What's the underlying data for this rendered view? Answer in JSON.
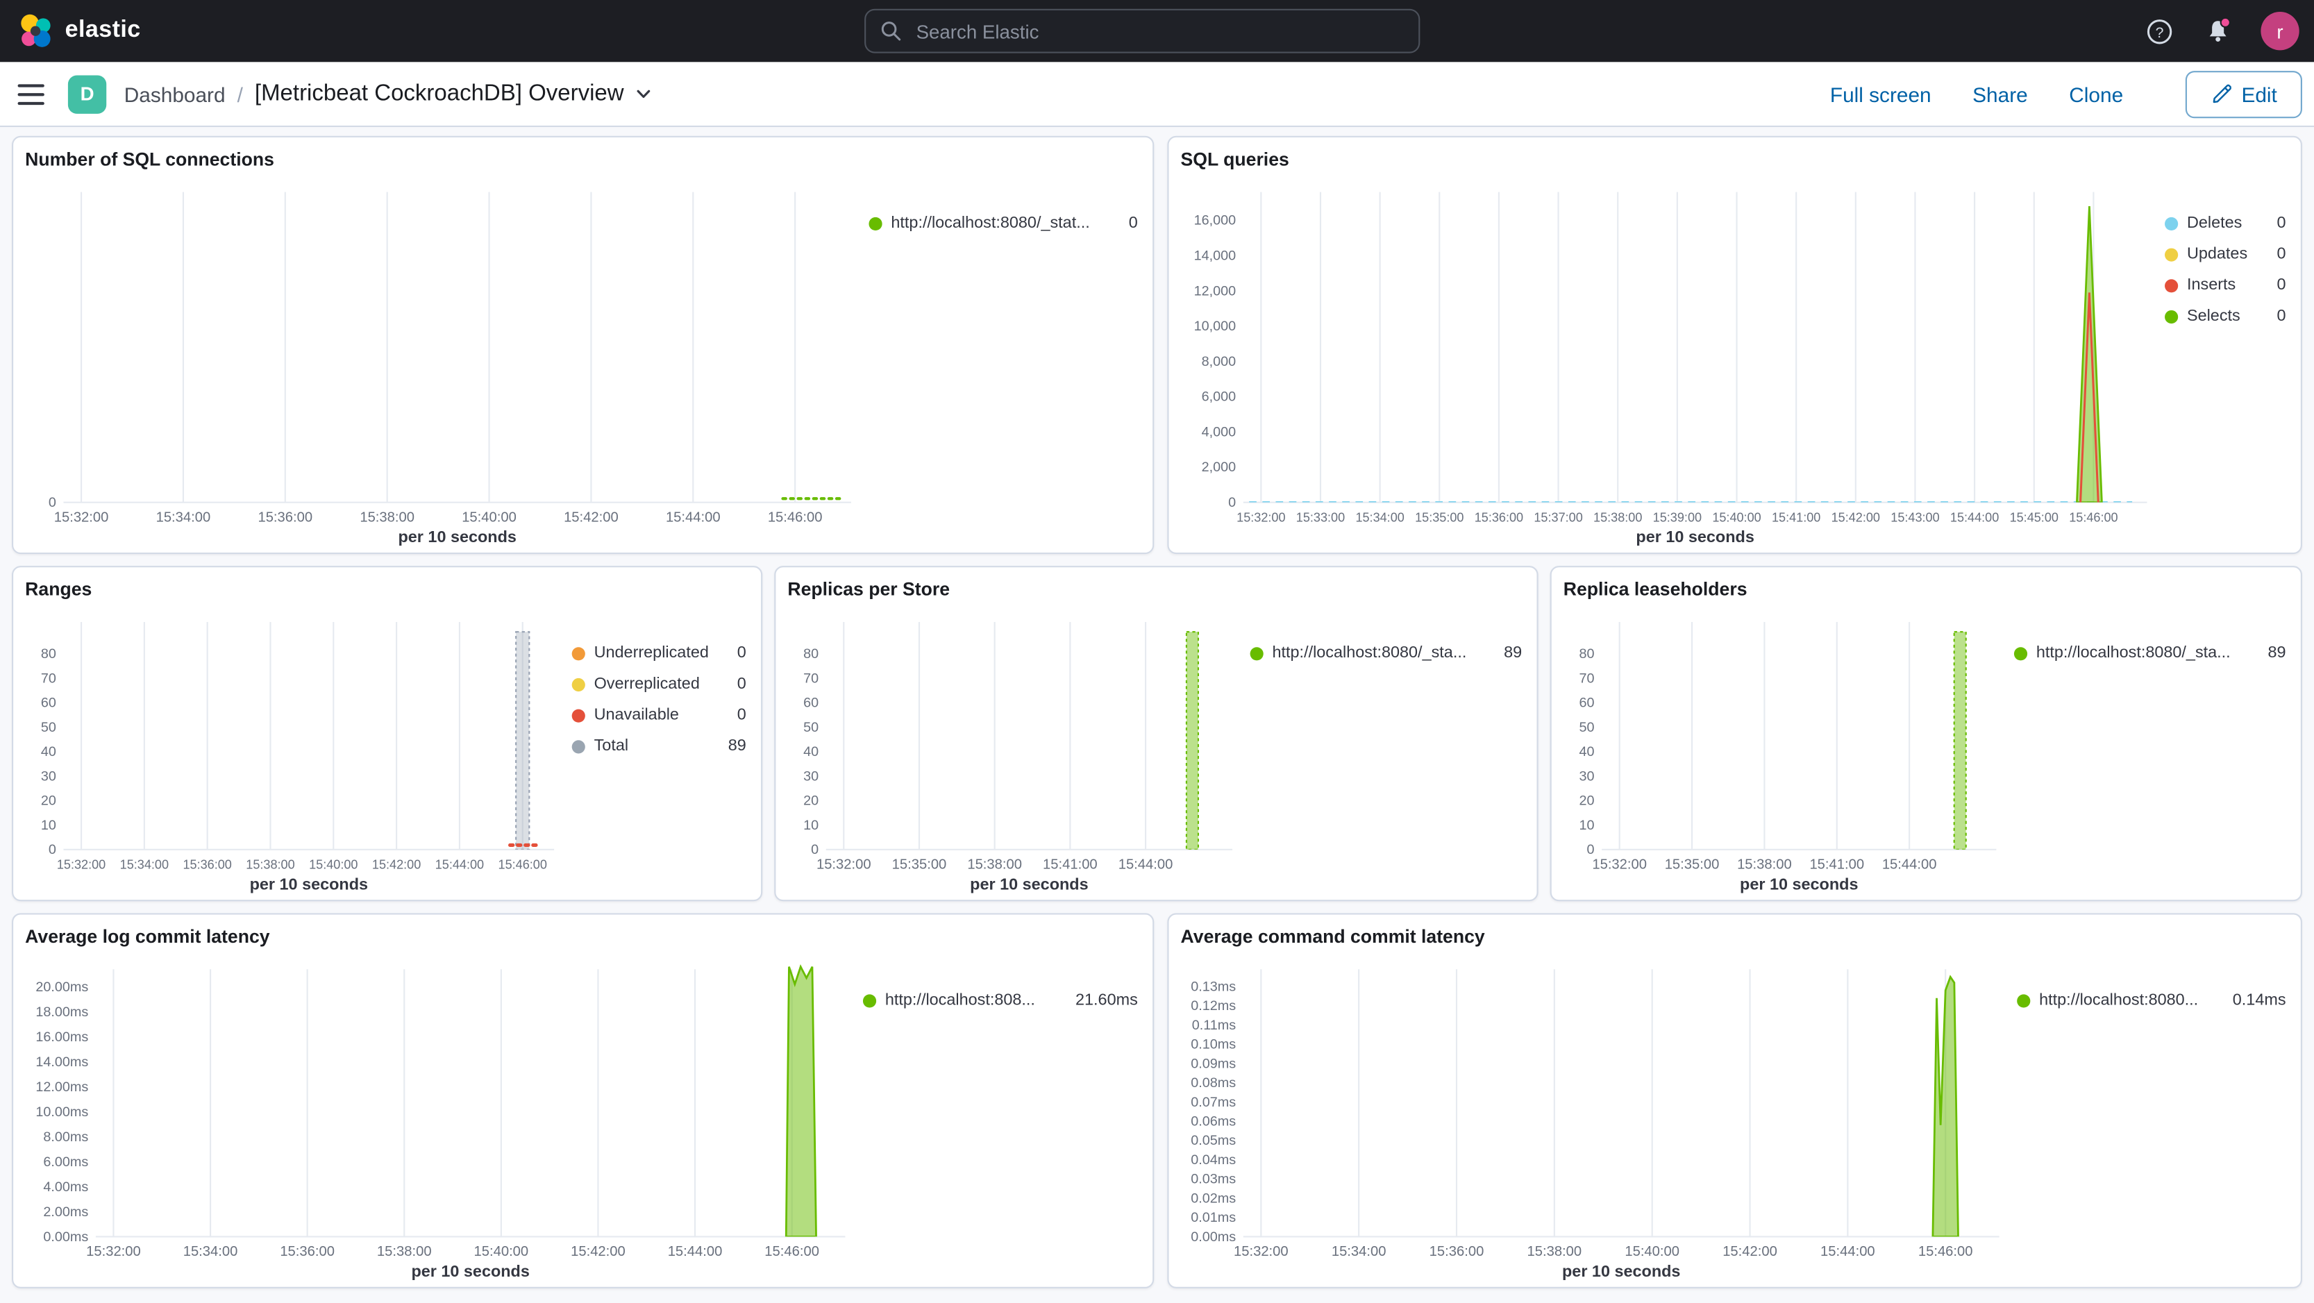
{
  "header": {
    "logo_text": "elastic",
    "search_placeholder": "Search Elastic",
    "avatar_initial": "r",
    "accent_pink": "#f04e98"
  },
  "navbar": {
    "badge": "D",
    "breadcrumb": "Dashboard",
    "separator": "/",
    "title": "[Metricbeat CockroachDB] Overview",
    "full_screen": "Full screen",
    "share": "Share",
    "clone": "Clone",
    "edit": "Edit"
  },
  "panels": [
    {
      "title": "Number of SQL connections",
      "legend": [
        {
          "color": "#68BC00",
          "label": "http://localhost:8080/_stat...",
          "value": "0"
        }
      ],
      "chart": {
        "type": "line",
        "ymax": 1,
        "yticks": [
          {
            "label": "0",
            "v": 0
          }
        ],
        "xticks": [
          "15:32:00",
          "15:34:00",
          "15:36:00",
          "15:38:00",
          "15:40:00",
          "15:42:00",
          "15:44:00",
          "15:46:00"
        ],
        "x_extra": 0.55,
        "xlabel": "per 10 seconds",
        "series": [
          {
            "name": "http://localhost:8080/_stat...",
            "type": "dotted",
            "color": "#68BC00",
            "width": 2,
            "points": [
              [
                6.88,
                0.012
              ],
              [
                7.48,
                0.012
              ]
            ]
          }
        ]
      }
    },
    {
      "title": "SQL queries",
      "legend": [
        {
          "color": "#7DD2EE",
          "label": "Deletes",
          "value": "0"
        },
        {
          "color": "#EFCF43",
          "label": "Updates",
          "value": "0"
        },
        {
          "color": "#E4503A",
          "label": "Inserts",
          "value": "0"
        },
        {
          "color": "#68BC00",
          "label": "Selects",
          "value": "0"
        }
      ],
      "chart": {
        "type": "line",
        "ymax": 17600,
        "yticks": [
          {
            "label": "0",
            "v": 0
          },
          {
            "label": "2,000",
            "v": 2000
          },
          {
            "label": "4,000",
            "v": 4000
          },
          {
            "label": "6,000",
            "v": 6000
          },
          {
            "label": "8,000",
            "v": 8000
          },
          {
            "label": "10,000",
            "v": 10000
          },
          {
            "label": "12,000",
            "v": 12000
          },
          {
            "label": "14,000",
            "v": 14000
          },
          {
            "label": "16,000",
            "v": 16000
          }
        ],
        "xticks": [
          "15:32:00",
          "15:33:00",
          "15:34:00",
          "15:35:00",
          "15:36:00",
          "15:37:00",
          "15:38:00",
          "15:39:00",
          "15:40:00",
          "15:41:00",
          "15:42:00",
          "15:43:00",
          "15:44:00",
          "15:45:00",
          "15:46:00"
        ],
        "x_extra": 0.9,
        "xlabel": "per 10 seconds",
        "series": [
          {
            "name": "Deletes",
            "type": "dashed",
            "color": "#7DD2EE",
            "width": 1.5,
            "points": [
              [
                -0.2,
                0
              ],
              [
                14.65,
                0
              ]
            ]
          },
          {
            "name": "Selects",
            "type": "area",
            "color": "#68BC00",
            "fill_opacity": 0.5,
            "points": [
              [
                13.72,
                0
              ],
              [
                13.93,
                16800
              ],
              [
                14.14,
                0
              ]
            ]
          },
          {
            "name": "Inserts",
            "type": "line",
            "color": "#E4503A",
            "width": 1.4,
            "points": [
              [
                13.78,
                0
              ],
              [
                13.93,
                11900
              ],
              [
                14.08,
                0
              ]
            ]
          }
        ]
      }
    },
    {
      "title": "Ranges",
      "legend": [
        {
          "color": "#F29A38",
          "label": "Underreplicated",
          "value": "0"
        },
        {
          "color": "#EFCF43",
          "label": "Overreplicated",
          "value": "0"
        },
        {
          "color": "#E4503A",
          "label": "Unavailable",
          "value": "0"
        },
        {
          "color": "#9AA5B1",
          "label": "Total",
          "value": "89"
        }
      ],
      "chart": {
        "type": "bar",
        "ymax": 93,
        "yticks": [
          {
            "label": "0",
            "v": 0
          },
          {
            "label": "10",
            "v": 10
          },
          {
            "label": "20",
            "v": 20
          },
          {
            "label": "30",
            "v": 30
          },
          {
            "label": "40",
            "v": 40
          },
          {
            "label": "50",
            "v": 50
          },
          {
            "label": "60",
            "v": 60
          },
          {
            "label": "70",
            "v": 70
          },
          {
            "label": "80",
            "v": 80
          }
        ],
        "xticks": [
          "15:32:00",
          "15:34:00",
          "15:36:00",
          "15:38:00",
          "15:40:00",
          "15:42:00",
          "15:44:00",
          "15:46:00"
        ],
        "x_extra": 0.5,
        "xlabel": "per 10 seconds",
        "series": [
          {
            "name": "Total",
            "type": "bar",
            "color": "#98A2B3",
            "fill_opacity": 0.35,
            "barw": 9,
            "points": [
              [
                7,
                89
              ]
            ]
          },
          {
            "name": "Unavailable",
            "type": "dotted",
            "color": "#E4503A",
            "width": 2.4,
            "points": [
              [
                6.8,
                1.8
              ],
              [
                7.22,
                1.8
              ]
            ]
          }
        ]
      }
    },
    {
      "title": "Replicas per Store",
      "legend": [
        {
          "color": "#68BC00",
          "label": "http://localhost:8080/_sta...",
          "value": "89"
        }
      ],
      "chart": {
        "type": "bar",
        "ymax": 93,
        "yticks": [
          {
            "label": "0",
            "v": 0
          },
          {
            "label": "10",
            "v": 10
          },
          {
            "label": "20",
            "v": 20
          },
          {
            "label": "30",
            "v": 30
          },
          {
            "label": "40",
            "v": 40
          },
          {
            "label": "50",
            "v": 50
          },
          {
            "label": "60",
            "v": 60
          },
          {
            "label": "70",
            "v": 70
          },
          {
            "label": "80",
            "v": 80
          }
        ],
        "xticks": [
          "15:32:00",
          "15:35:00",
          "15:38:00",
          "15:41:00",
          "15:44:00"
        ],
        "x_extra": 1.15,
        "xlabel": "per 10 seconds",
        "series": [
          {
            "name": "http://localhost:8080/_sta...",
            "type": "bar",
            "color": "#68BC00",
            "fill_opacity": 0.45,
            "barw": 8,
            "points": [
              [
                4.62,
                89
              ]
            ]
          }
        ]
      }
    },
    {
      "title": "Replica leaseholders",
      "legend": [
        {
          "color": "#68BC00",
          "label": "http://localhost:8080/_sta...",
          "value": "89"
        }
      ],
      "chart": {
        "type": "bar",
        "ymax": 93,
        "yticks": [
          {
            "label": "0",
            "v": 0
          },
          {
            "label": "10",
            "v": 10
          },
          {
            "label": "20",
            "v": 20
          },
          {
            "label": "30",
            "v": 30
          },
          {
            "label": "40",
            "v": 40
          },
          {
            "label": "50",
            "v": 50
          },
          {
            "label": "60",
            "v": 60
          },
          {
            "label": "70",
            "v": 70
          },
          {
            "label": "80",
            "v": 80
          }
        ],
        "xticks": [
          "15:32:00",
          "15:35:00",
          "15:38:00",
          "15:41:00",
          "15:44:00"
        ],
        "x_extra": 1.2,
        "xlabel": "per 10 seconds",
        "series": [
          {
            "name": "http://localhost:8080/_sta...",
            "type": "bar",
            "color": "#68BC00",
            "fill_opacity": 0.45,
            "barw": 8,
            "points": [
              [
                4.7,
                89
              ]
            ]
          }
        ]
      }
    },
    {
      "title": "Average log commit latency",
      "legend": [
        {
          "color": "#68BC00",
          "label": "http://localhost:808...",
          "value": "21.60ms"
        }
      ],
      "chart": {
        "type": "area",
        "ymax": 21.4,
        "yticks": [
          {
            "label": "0.00ms",
            "v": 0
          },
          {
            "label": "2.00ms",
            "v": 2
          },
          {
            "label": "4.00ms",
            "v": 4
          },
          {
            "label": "6.00ms",
            "v": 6
          },
          {
            "label": "8.00ms",
            "v": 8
          },
          {
            "label": "10.00ms",
            "v": 10
          },
          {
            "label": "12.00ms",
            "v": 12
          },
          {
            "label": "14.00ms",
            "v": 14
          },
          {
            "label": "16.00ms",
            "v": 16
          },
          {
            "label": "18.00ms",
            "v": 18
          },
          {
            "label": "20.00ms",
            "v": 20
          }
        ],
        "xticks": [
          "15:32:00",
          "15:34:00",
          "15:36:00",
          "15:38:00",
          "15:40:00",
          "15:42:00",
          "15:44:00",
          "15:46:00"
        ],
        "x_extra": 0.55,
        "xlabel": "per 10 seconds",
        "series": [
          {
            "name": "http://localhost:808...",
            "type": "area",
            "color": "#68BC00",
            "fill_opacity": 0.5,
            "points": [
              [
                6.94,
                0
              ],
              [
                6.97,
                21.6
              ],
              [
                7.03,
                20.2
              ],
              [
                7.09,
                21.6
              ],
              [
                7.15,
                20.7
              ],
              [
                7.21,
                21.6
              ],
              [
                7.25,
                0
              ]
            ]
          }
        ]
      }
    },
    {
      "title": "Average command commit latency",
      "legend": [
        {
          "color": "#68BC00",
          "label": "http://localhost:8080...",
          "value": "0.14ms"
        }
      ],
      "chart": {
        "type": "area",
        "ymax": 0.139,
        "yticks": [
          {
            "label": "0.00ms",
            "v": 0
          },
          {
            "label": "0.01ms",
            "v": 0.01
          },
          {
            "label": "0.02ms",
            "v": 0.02
          },
          {
            "label": "0.03ms",
            "v": 0.03
          },
          {
            "label": "0.04ms",
            "v": 0.04
          },
          {
            "label": "0.05ms",
            "v": 0.05
          },
          {
            "label": "0.06ms",
            "v": 0.06
          },
          {
            "label": "0.07ms",
            "v": 0.07
          },
          {
            "label": "0.08ms",
            "v": 0.08
          },
          {
            "label": "0.09ms",
            "v": 0.09
          },
          {
            "label": "0.10ms",
            "v": 0.1
          },
          {
            "label": "0.11ms",
            "v": 0.11
          },
          {
            "label": "0.12ms",
            "v": 0.12
          },
          {
            "label": "0.13ms",
            "v": 0.13
          }
        ],
        "xticks": [
          "15:32:00",
          "15:34:00",
          "15:36:00",
          "15:38:00",
          "15:40:00",
          "15:42:00",
          "15:44:00",
          "15:46:00"
        ],
        "x_extra": 0.55,
        "xlabel": "per 10 seconds",
        "series": [
          {
            "name": "http://localhost:8080...",
            "type": "area",
            "color": "#68BC00",
            "fill_opacity": 0.5,
            "points": [
              [
                6.87,
                0
              ],
              [
                6.91,
                0.124
              ],
              [
                6.95,
                0.058
              ],
              [
                7.0,
                0.128
              ],
              [
                7.05,
                0.135
              ],
              [
                7.09,
                0.132
              ],
              [
                7.13,
                0
              ]
            ]
          }
        ]
      }
    }
  ]
}
